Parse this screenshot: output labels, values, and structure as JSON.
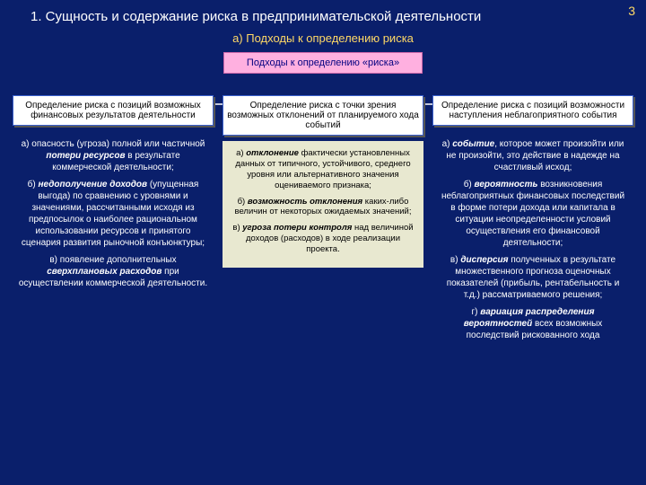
{
  "page_number": "3",
  "title": "1.    Сущность и содержание риска в предпринимательской деятельности",
  "subtitle": "а) Подходы к определению риска",
  "header_box": "Подходы к определению «риска»",
  "colors": {
    "background": "#0a1f6b",
    "accent": "#ffd966",
    "header_box_bg": "#ffb0e0",
    "col_head_bg": "#ffffff",
    "col_body_inner_bg": "#e8e8d0"
  },
  "columns": [
    {
      "head": "Определение риска с позиций возможных финансовых результатов деятельности",
      "body_html": "<p>а) опасность (угроза) полной или частичной <b><i>потери ресурсов</i></b> в результате коммерческой деятельности;</p><p>б) <b><i>недополучение доходов</i></b> (упущенная выгода) по сравнению с уровнями и значениями, рассчитанными исходя из предпосылок о наиболее рациональном использовании ресурсов и принятого сценария развития рыночной конъюнктуры;</p><p>в) появление дополнительных <b><i>сверхплановых расходов</i></b> при осуществлении коммерческой деятельности.</p>",
      "inner": false
    },
    {
      "head": "Определение риска с точки зрения возможных отклонений от планируемого хода событий",
      "body_html": "<p>а) <b><i>отклонение</i></b> фактически установленных данных от типичного, устойчивого, среднего уровня или альтернативного значения оцениваемого признака;</p><p>б) <b><i>возможность отклонения</i></b> каких-либо величин от некоторых ожидаемых значений;</p><p>в) <b><i>угроза потери контроля</i></b> над величиной доходов (расходов) в ходе реализации проекта.</p>",
      "inner": true
    },
    {
      "head": "Определение риска с позиций возможности наступления неблагоприятного события",
      "body_html": "<p>а) <b><i>событие</i></b>, которое может произойти или не произойти, это действие в надежде на счастливый исход;</p><p>б) <b><i>вероятность</i></b> возникновения неблагоприятных финансовых последствий в форме потери дохода или капитала в ситуации неопределенности условий осуществления его финансовой деятельности;</p><p>в) <b><i>дисперсия</i></b> полученных в результате множественного прогноза оценочных показателей (прибыль, рентабельность и т.д.) рассматриваемого решения;</p><p>г) <b><i>вариация распределения вероятностей</i></b> всех возможных последствий рискованного хода</p>",
      "inner": false
    }
  ]
}
